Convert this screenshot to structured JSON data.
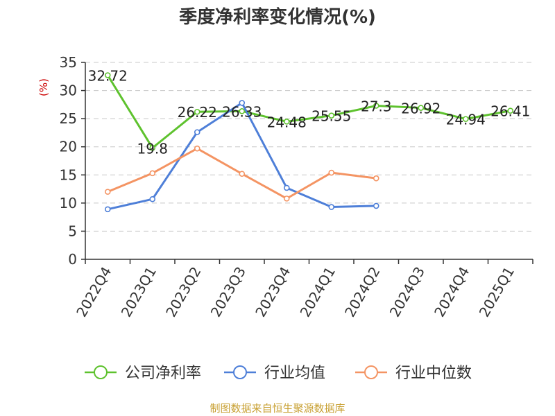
{
  "chart_data": {
    "type": "line",
    "title": "季度净利率变化情况(%)",
    "ylabel": "(%)",
    "ylim": [
      0,
      35
    ],
    "yticks": [
      0,
      5,
      10,
      15,
      20,
      25,
      30,
      35
    ],
    "grid": true,
    "legend_position": "bottom",
    "categories": [
      "2022Q4",
      "2023Q1",
      "2023Q2",
      "2023Q3",
      "2023Q4",
      "2024Q1",
      "2024Q2",
      "2024Q3",
      "2024Q4",
      "2025Q1"
    ],
    "series": [
      {
        "name": "公司净利率",
        "color": "#5ec22e",
        "values": [
          32.72,
          19.8,
          26.22,
          26.33,
          24.48,
          25.55,
          27.3,
          26.92,
          24.94,
          26.41
        ],
        "labels": [
          "32.72",
          "19.8",
          "26.22",
          "26.33",
          "24.48",
          "25.55",
          "27.3",
          "26.92",
          "24.94",
          "26.41"
        ]
      },
      {
        "name": "行业均值",
        "color": "#4e7fd8",
        "values": [
          8.9,
          10.7,
          22.6,
          27.8,
          12.7,
          9.3,
          9.5,
          null,
          null,
          null
        ]
      },
      {
        "name": "行业中位数",
        "color": "#f49463",
        "values": [
          12.0,
          15.3,
          19.7,
          15.2,
          10.8,
          15.4,
          14.4,
          null,
          null,
          null
        ]
      }
    ]
  },
  "footer": "制图数据来自恒生聚源数据库"
}
